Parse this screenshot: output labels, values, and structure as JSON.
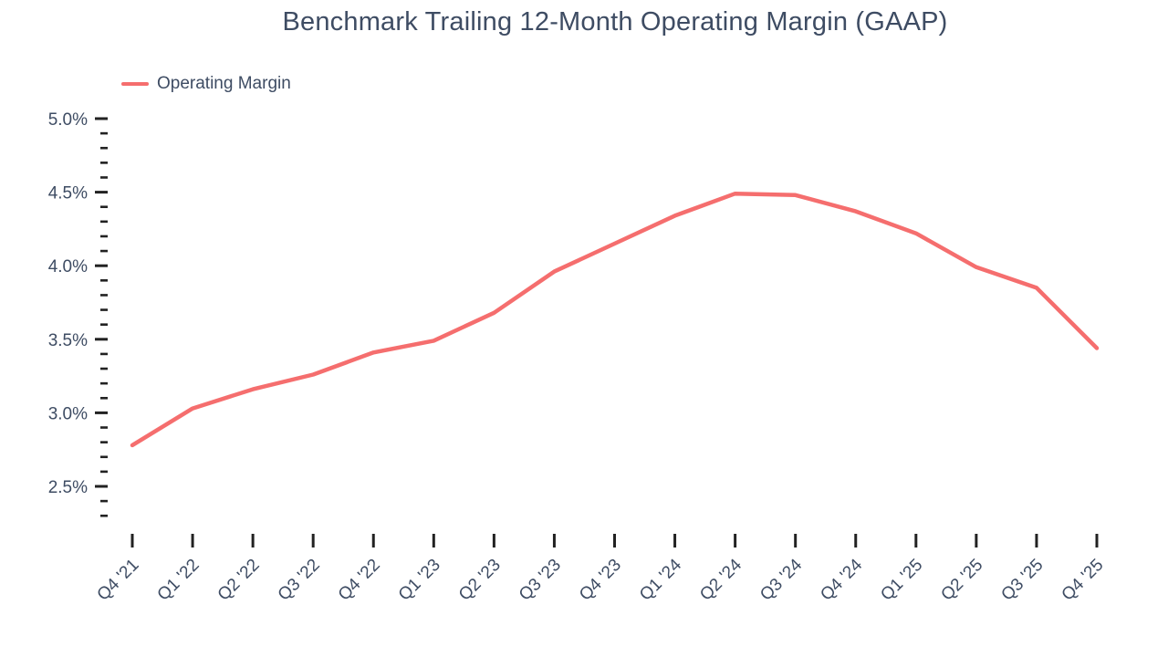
{
  "title": "Benchmark Trailing 12-Month Operating Margin (GAAP)",
  "legend": {
    "label": "Operating Margin"
  },
  "colors": {
    "series": "#F56E6E",
    "text": "#3E4C63",
    "tick": "#222222",
    "background": "#FFFFFF"
  },
  "chart_data": {
    "type": "line",
    "title": "Benchmark Trailing 12-Month Operating Margin (GAAP)",
    "xlabel": "",
    "ylabel": "",
    "categories": [
      "Q4 '21",
      "Q1 '22",
      "Q2 '22",
      "Q3 '22",
      "Q4 '22",
      "Q1 '23",
      "Q2 '23",
      "Q3 '23",
      "Q4 '23",
      "Q1 '24",
      "Q2 '24",
      "Q3 '24",
      "Q4 '24",
      "Q1 '25",
      "Q2 '25",
      "Q3 '25",
      "Q4 '25"
    ],
    "series": [
      {
        "name": "Operating Margin",
        "values": [
          2.78,
          3.03,
          3.16,
          3.26,
          3.41,
          3.49,
          3.68,
          3.96,
          4.15,
          4.34,
          4.49,
          4.48,
          4.37,
          4.22,
          3.99,
          3.85,
          3.44
        ]
      }
    ],
    "unit": "%",
    "ylim": [
      2.3,
      5.0
    ],
    "yticks": [
      {
        "value": 5.0,
        "label": "5.0%"
      },
      {
        "value": 4.5,
        "label": "4.5%"
      },
      {
        "value": 4.0,
        "label": "4.0%"
      },
      {
        "value": 3.5,
        "label": "3.5%"
      },
      {
        "value": 3.0,
        "label": "3.0%"
      },
      {
        "value": 2.5,
        "label": "2.5%"
      }
    ],
    "minor_tick_step": 0.1,
    "grid": false,
    "legend_position": "top-left",
    "x_label_rotation": -45
  }
}
